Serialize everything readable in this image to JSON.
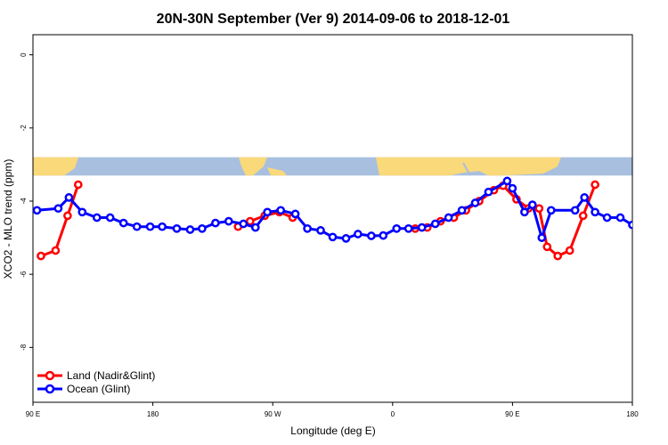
{
  "chart_data": {
    "type": "line",
    "title": "20N-30N September (Ver 9)   2014-09-06 to 2018-12-01",
    "xlabel": "Longitude (deg E)",
    "ylabel": "XCO2 - MLO trend (ppm)",
    "x_ticks": [
      {
        "value": 90,
        "label": "90 E"
      },
      {
        "value": 180,
        "label": "180"
      },
      {
        "value": 270,
        "label": "90 W"
      },
      {
        "value": 360,
        "label": "0"
      },
      {
        "value": 450,
        "label": "90 E"
      },
      {
        "value": 540,
        "label": "180"
      }
    ],
    "y_ticks": [
      {
        "value": 0,
        "label": "0"
      },
      {
        "value": -2,
        "label": "-2"
      },
      {
        "value": -4,
        "label": "-4"
      },
      {
        "value": -6,
        "label": "-6"
      },
      {
        "value": -8,
        "label": "-8"
      }
    ],
    "xlim": [
      90,
      540
    ],
    "ylim": [
      -9.5,
      0.55
    ],
    "map_strip": {
      "y_top": -2.8,
      "y_bottom": -3.3,
      "ocean_color": "#a8bfdf",
      "land_color": "#f9d97a"
    },
    "series": [
      {
        "name": "Land (Nadir&Glint)",
        "color": "#ff0000",
        "segments": [
          [
            [
              96,
              -5.5
            ],
            [
              107,
              -5.35
            ],
            [
              116,
              -4.4
            ],
            [
              124,
              -3.55
            ]
          ],
          [
            [
              244,
              -4.7
            ],
            [
              253,
              -4.55
            ],
            [
              264,
              -4.4
            ],
            [
              275,
              -4.3
            ],
            [
              285,
              -4.45
            ]
          ],
          [
            [
              377,
              -4.75
            ],
            [
              386,
              -4.72
            ],
            [
              396,
              -4.55
            ],
            [
              406,
              -4.45
            ],
            [
              415,
              -4.25
            ],
            [
              425,
              -4.0
            ],
            [
              436,
              -3.7
            ],
            [
              443,
              -3.58
            ],
            [
              453,
              -3.95
            ],
            [
              462,
              -4.2
            ],
            [
              470,
              -4.2
            ],
            [
              476,
              -5.25
            ],
            [
              484,
              -5.5
            ],
            [
              493,
              -5.35
            ],
            [
              503,
              -4.4
            ],
            [
              512,
              -3.55
            ]
          ]
        ]
      },
      {
        "name": "Ocean (Glint)",
        "color": "#0000ff",
        "segments": [
          [
            [
              93,
              -4.25
            ],
            [
              109,
              -4.2
            ],
            [
              117,
              -3.9
            ],
            [
              127,
              -4.3
            ],
            [
              138,
              -4.45
            ],
            [
              148,
              -4.45
            ],
            [
              158,
              -4.6
            ],
            [
              168,
              -4.7
            ],
            [
              178,
              -4.7
            ],
            [
              187,
              -4.7
            ],
            [
              198,
              -4.75
            ],
            [
              208,
              -4.78
            ],
            [
              217,
              -4.75
            ],
            [
              227,
              -4.6
            ],
            [
              237,
              -4.55
            ],
            [
              248,
              -4.62
            ],
            [
              257,
              -4.72
            ],
            [
              266,
              -4.3
            ],
            [
              276,
              -4.25
            ],
            [
              287,
              -4.35
            ],
            [
              296,
              -4.75
            ],
            [
              306,
              -4.8
            ],
            [
              315,
              -4.98
            ],
            [
              325,
              -5.02
            ],
            [
              334,
              -4.9
            ],
            [
              344,
              -4.95
            ],
            [
              353,
              -4.94
            ],
            [
              363,
              -4.75
            ],
            [
              372,
              -4.75
            ],
            [
              382,
              -4.72
            ],
            [
              392,
              -4.62
            ],
            [
              402,
              -4.45
            ],
            [
              412,
              -4.25
            ],
            [
              422,
              -4.05
            ],
            [
              432,
              -3.75
            ],
            [
              446,
              -3.45
            ],
            [
              450,
              -3.65
            ],
            [
              459,
              -4.3
            ],
            [
              465,
              -4.1
            ],
            [
              472,
              -5.0
            ],
            [
              479,
              -4.25
            ],
            [
              497,
              -4.25
            ],
            [
              504,
              -3.9
            ],
            [
              512,
              -4.3
            ],
            [
              521,
              -4.45
            ],
            [
              531,
              -4.45
            ],
            [
              540,
              -4.65
            ],
            [
              550,
              -4.72
            ],
            [
              559,
              -4.7
            ]
          ]
        ]
      }
    ],
    "legend": {
      "position": "bottom-left",
      "labels": [
        "Land (Nadir&Glint)",
        "Ocean (Glint)"
      ]
    }
  }
}
